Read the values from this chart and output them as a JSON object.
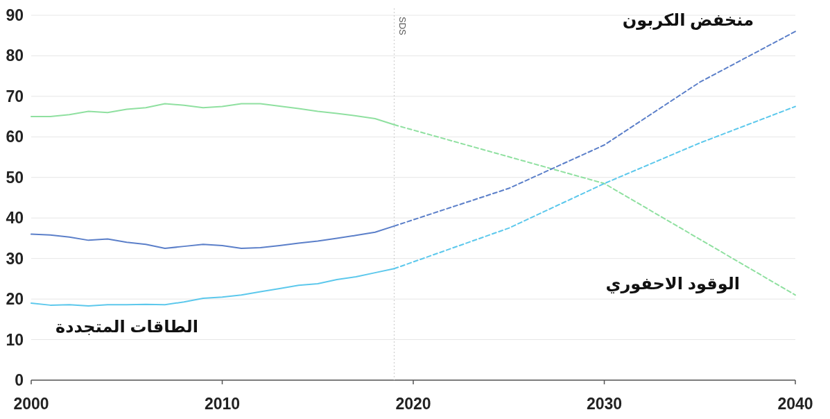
{
  "chart_data": {
    "type": "line",
    "xlim": [
      2000,
      2040
    ],
    "xticks": [
      2000,
      2010,
      2020,
      2030,
      2040
    ],
    "ylim": [
      0,
      90
    ],
    "yticks": [
      0,
      10,
      20,
      30,
      40,
      50,
      60,
      70,
      80,
      90
    ],
    "grid": "y",
    "ref_lines": [
      {
        "axis": "x",
        "value": 2019,
        "label": "SDS",
        "color": "#c8c8c8",
        "line_style": "dotted"
      }
    ],
    "series": [
      {
        "color": "#8fe0a0",
        "line_style": "solid",
        "x": [
          2000,
          2001,
          2002,
          2003,
          2004,
          2005,
          2006,
          2007,
          2008,
          2009,
          2010,
          2011,
          2012,
          2013,
          2014,
          2015,
          2016,
          2017,
          2018,
          2019
        ],
        "values": [
          65,
          65,
          65.5,
          66.3,
          66,
          66.8,
          67.2,
          68.2,
          67.8,
          67.2,
          67.5,
          68.2,
          68.2,
          67.6,
          67,
          66.3,
          65.8,
          65.2,
          64.5,
          63
        ]
      },
      {
        "name": "الوقود الاحفوري",
        "color": "#8fe0a0",
        "line_style": "dashed",
        "x": [
          2019,
          2030,
          2040
        ],
        "values": [
          63,
          48.5,
          21
        ]
      },
      {
        "color": "#5b7fc9",
        "line_style": "solid",
        "x": [
          2000,
          2001,
          2002,
          2003,
          2004,
          2005,
          2006,
          2007,
          2008,
          2009,
          2010,
          2011,
          2012,
          2013,
          2014,
          2015,
          2016,
          2017,
          2018,
          2019
        ],
        "values": [
          36,
          35.8,
          35.3,
          34.5,
          34.8,
          34,
          33.5,
          32.5,
          33,
          33.5,
          33.2,
          32.5,
          32.7,
          33.2,
          33.8,
          34.3,
          35,
          35.7,
          36.5,
          38
        ]
      },
      {
        "name": "منخفض الكربون",
        "color": "#5b7fc9",
        "line_style": "dashed",
        "x": [
          2019,
          2025,
          2030,
          2035,
          2040
        ],
        "values": [
          38,
          47.3,
          58,
          73.5,
          86
        ]
      },
      {
        "name": "الطاقات المتجددة",
        "color": "#5cc8ec",
        "line_style": "solid",
        "x": [
          2000,
          2001,
          2002,
          2003,
          2004,
          2005,
          2006,
          2007,
          2008,
          2009,
          2010,
          2011,
          2012,
          2013,
          2014,
          2015,
          2016,
          2017,
          2018,
          2019
        ],
        "values": [
          19,
          18.5,
          18.6,
          18.3,
          18.6,
          18.6,
          18.7,
          18.6,
          19.3,
          20.2,
          20.5,
          21,
          21.8,
          22.6,
          23.4,
          23.8,
          24.8,
          25.5,
          26.5,
          27.5
        ]
      },
      {
        "color": "#5cc8ec",
        "line_style": "dashed",
        "x": [
          2019,
          2025,
          2030,
          2035,
          2040
        ],
        "values": [
          27.5,
          37.5,
          48.5,
          58.5,
          67.5
        ]
      }
    ]
  }
}
